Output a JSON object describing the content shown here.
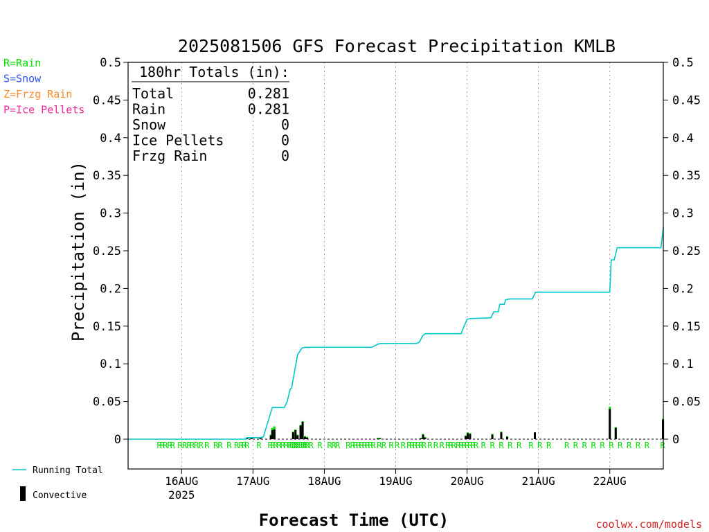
{
  "chart_data": {
    "type": "bar",
    "title": "2025081506 GFS Forecast Precipitation KMLB",
    "xlabel": "Forecast Time (UTC)",
    "ylabel": "Precipitation (in)",
    "ylim": [
      0,
      0.5
    ],
    "yticks": [
      "0",
      "0.05",
      "0.1",
      "0.15",
      "0.2",
      "0.25",
      "0.3",
      "0.35",
      "0.4",
      "0.45",
      "0.5"
    ],
    "xlim_hours": [
      0,
      180
    ],
    "xticks": [
      {
        "hour": 18,
        "label": "16AUG",
        "sublabel": "2025"
      },
      {
        "hour": 42,
        "label": "17AUG",
        "sublabel": ""
      },
      {
        "hour": 66,
        "label": "18AUG",
        "sublabel": ""
      },
      {
        "hour": 90,
        "label": "19AUG",
        "sublabel": ""
      },
      {
        "hour": 114,
        "label": "20AUG",
        "sublabel": ""
      },
      {
        "hour": 138,
        "label": "21AUG",
        "sublabel": ""
      },
      {
        "hour": 162,
        "label": "22AUG",
        "sublabel": ""
      }
    ],
    "legend_types": [
      {
        "text": "R=Rain",
        "color": "#00e000"
      },
      {
        "text": "S=Snow",
        "color": "#3050f0"
      },
      {
        "text": "Z=Frzg Rain",
        "color": "#ff8c28"
      },
      {
        "text": "P=Ice Pellets",
        "color": "#f02896"
      }
    ],
    "legend_series": [
      {
        "text": "Running Total",
        "color": "#00c8c8"
      },
      {
        "text": "Convective",
        "color": "#000000"
      }
    ],
    "totals": {
      "header": "180hr Totals (in):",
      "rows": [
        {
          "label": "Total",
          "value": "0.281"
        },
        {
          "label": "Rain",
          "value": "0.281"
        },
        {
          "label": "Snow",
          "value": "0"
        },
        {
          "label": "Ice Pellets",
          "value": "0"
        },
        {
          "label": "Frzg Rain",
          "value": "0"
        }
      ]
    },
    "running_total": [
      [
        0,
        0
      ],
      [
        39.3,
        0
      ],
      [
        40.0,
        0.002
      ],
      [
        44.5,
        0.002
      ],
      [
        45.5,
        0.003
      ],
      [
        46.8,
        0.02
      ],
      [
        48.5,
        0.042
      ],
      [
        52.5,
        0.042
      ],
      [
        53.5,
        0.05
      ],
      [
        54.5,
        0.066
      ],
      [
        55,
        0.068
      ],
      [
        57,
        0.112
      ],
      [
        58.5,
        0.121
      ],
      [
        59.5,
        0.122
      ],
      [
        82,
        0.122
      ],
      [
        84,
        0.126
      ],
      [
        85,
        0.127
      ],
      [
        97,
        0.127
      ],
      [
        98,
        0.129
      ],
      [
        99,
        0.137
      ],
      [
        100,
        0.14
      ],
      [
        112,
        0.14
      ],
      [
        113,
        0.15
      ],
      [
        114,
        0.159
      ],
      [
        115,
        0.16
      ],
      [
        122,
        0.161
      ],
      [
        123,
        0.169
      ],
      [
        124.5,
        0.169
      ],
      [
        125,
        0.179
      ],
      [
        126.5,
        0.179
      ],
      [
        127,
        0.185
      ],
      [
        128.5,
        0.186
      ],
      [
        136,
        0.186
      ],
      [
        137,
        0.195
      ],
      [
        162,
        0.195
      ],
      [
        162.5,
        0.238
      ],
      [
        163.5,
        0.238
      ],
      [
        164.5,
        0.254
      ],
      [
        179.2,
        0.254
      ],
      [
        180,
        0.281
      ]
    ],
    "bars": [
      {
        "h": 40.0,
        "total": 0.002,
        "conv": 0.002
      },
      {
        "h": 41.5,
        "total": 0.002,
        "conv": 0.002
      },
      {
        "h": 44.5,
        "total": 0.002,
        "conv": 0.002
      },
      {
        "h": 48.0,
        "total": 0.006,
        "conv": 0.005
      },
      {
        "h": 48.5,
        "total": 0.015,
        "conv": 0.012
      },
      {
        "h": 49.2,
        "total": 0.017,
        "conv": 0.013
      },
      {
        "h": 55.5,
        "total": 0.01,
        "conv": 0.009
      },
      {
        "h": 56.3,
        "total": 0.013,
        "conv": 0.012
      },
      {
        "h": 57.0,
        "total": 0.006,
        "conv": 0.005
      },
      {
        "h": 58.0,
        "total": 0.019,
        "conv": 0.018
      },
      {
        "h": 58.7,
        "total": 0.024,
        "conv": 0.023
      },
      {
        "h": 59.5,
        "total": 0.004,
        "conv": 0.003
      },
      {
        "h": 60.2,
        "total": 0.003,
        "conv": 0.002
      },
      {
        "h": 84.0,
        "total": 0.002,
        "conv": 0.001
      },
      {
        "h": 84.7,
        "total": 0.002,
        "conv": 0.001
      },
      {
        "h": 98.5,
        "total": 0.002,
        "conv": 0.001
      },
      {
        "h": 99.2,
        "total": 0.007,
        "conv": 0.006
      },
      {
        "h": 99.9,
        "total": 0.003,
        "conv": 0.002
      },
      {
        "h": 113.5,
        "total": 0.005,
        "conv": 0.004
      },
      {
        "h": 114.2,
        "total": 0.009,
        "conv": 0.008
      },
      {
        "h": 115.0,
        "total": 0.008,
        "conv": 0.007
      },
      {
        "h": 122.5,
        "total": 0.007,
        "conv": 0.006
      },
      {
        "h": 125.5,
        "total": 0.01,
        "conv": 0.009
      },
      {
        "h": 127.5,
        "total": 0.004,
        "conv": 0.003
      },
      {
        "h": 136.8,
        "total": 0.009,
        "conv": 0.009
      },
      {
        "h": 162.0,
        "total": 0.043,
        "conv": 0.04
      },
      {
        "h": 164.0,
        "total": 0.016,
        "conv": 0.015
      },
      {
        "h": 179.9,
        "total": 0.027,
        "conv": 0.026
      }
    ],
    "ptype_markers": {
      "letter": "R",
      "hours": [
        10.5,
        11.5,
        12.5,
        14.0,
        15.0,
        17.5,
        19.0,
        20.5,
        21.5,
        23.0,
        24.5,
        26.5,
        29.5,
        31.0,
        34.0,
        36.5,
        38.0,
        39.0,
        40.0,
        44.0,
        47.8,
        48.7,
        49.6,
        50.8,
        52.0,
        53.2,
        54.3,
        55.0,
        55.8,
        56.5,
        57.2,
        58.0,
        58.8,
        59.5,
        60.2,
        61.5,
        64.5,
        67.8,
        69.2,
        70.5,
        74.0,
        75.5,
        76.5,
        77.5,
        78.5,
        79.5,
        80.5,
        81.5,
        82.5,
        84.5,
        86.0,
        88.5,
        90.5,
        92.5,
        94.5,
        95.5,
        96.5,
        97.5,
        98.5,
        99.5,
        101.5,
        103.5,
        105.5,
        107.5,
        108.5,
        109.5,
        111.0,
        112.0,
        113.0,
        114.0,
        115.0,
        116.0,
        117.0,
        119.5,
        122.5,
        125.5,
        128.5,
        131.5,
        135.5,
        138.5,
        141.5,
        147.5,
        150.5,
        153.5,
        156.5,
        159.5,
        162.5,
        165.5,
        168.5,
        171.5,
        174.5,
        179.8
      ]
    },
    "colors": {
      "running_total": "#00c8c8",
      "rain": "#00e000",
      "convective": "#000000",
      "grid": "#a0a0a0",
      "credit": "#d02020"
    }
  },
  "credit": "coolwx.com/models"
}
